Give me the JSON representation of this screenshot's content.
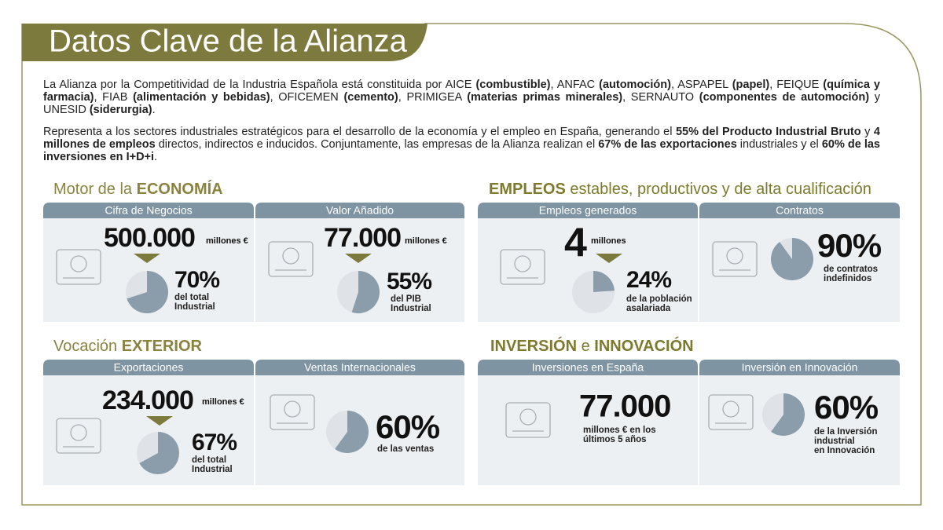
{
  "header": {
    "title": "Datos Clave de la Alianza"
  },
  "intro": [
    [
      {
        "text": "La Alianza por la Competitividad de la Industria Española está constituida por AICE ",
        "bold": false
      },
      {
        "text": "(combustible)",
        "bold": true
      },
      {
        "text": ", ANFAC ",
        "bold": false
      },
      {
        "text": "(automoción)",
        "bold": true
      },
      {
        "text": ", ASPAPEL ",
        "bold": false
      },
      {
        "text": "(papel)",
        "bold": true
      },
      {
        "text": ", FEIQUE ",
        "bold": false
      },
      {
        "text": "(química y farmacia)",
        "bold": true
      },
      {
        "text": ", FIAB ",
        "bold": false
      },
      {
        "text": "(alimentación y bebidas)",
        "bold": true
      },
      {
        "text": ", OFICEMEN ",
        "bold": false
      },
      {
        "text": "(cemento)",
        "bold": true
      },
      {
        "text": ", PRIMIGEA ",
        "bold": false
      },
      {
        "text": "(materias primas minerales)",
        "bold": true
      },
      {
        "text": ", SERNAUTO ",
        "bold": false
      },
      {
        "text": "(componentes de automoción)",
        "bold": true
      },
      {
        "text": " y UNESID ",
        "bold": false
      },
      {
        "text": "(siderurgia)",
        "bold": true
      },
      {
        "text": ".",
        "bold": false
      }
    ],
    [
      {
        "text": "Representa a los sectores industriales estratégicos para el desarrollo de la economía y el empleo en España, generando el ",
        "bold": false
      },
      {
        "text": "55% del Producto Industrial Bruto",
        "bold": true
      },
      {
        "text": " y ",
        "bold": false
      },
      {
        "text": "4 millones de empleos",
        "bold": true
      },
      {
        "text": " directos, indirectos e inducidos. Conjuntamente, las empresas de la Alianza realizan el ",
        "bold": false
      },
      {
        "text": "67% de las exportaciones",
        "bold": true
      },
      {
        "text": " industriales y el ",
        "bold": false
      },
      {
        "text": "60% de las inversiones en I+D+i",
        "bold": true
      },
      {
        "text": ".",
        "bold": false
      }
    ]
  ],
  "sections": [
    {
      "heading": [
        {
          "text": "Motor de la ",
          "bold": false
        },
        {
          "text": "ECONOMÍA",
          "bold": true
        }
      ],
      "cards": [
        {
          "header": "Cifra de Negocios",
          "big": "500.000",
          "unit": "millones €",
          "pct": 70,
          "pct_label": "70%",
          "desc": [
            "del total",
            "Industrial"
          ]
        },
        {
          "header": "Valor Añadido",
          "big": "77.000",
          "unit": "millones €",
          "pct": 55,
          "pct_label": "55%",
          "desc": [
            "del PIB",
            "Industrial"
          ]
        }
      ]
    },
    {
      "heading": [
        {
          "text": "EMPLEOS",
          "bold": true
        },
        {
          "text": " estables, productivos y de alta cualificación",
          "bold": false
        }
      ],
      "cards": [
        {
          "header": "Empleos generados",
          "big": "4",
          "unit": "millones",
          "pct": 24,
          "pct_label": "24%",
          "desc": [
            "de la población",
            "asalariada"
          ]
        },
        {
          "header": "Contratos",
          "pct": 90,
          "pct_label": "90%",
          "desc": [
            "de contratos",
            "indefinidos"
          ]
        }
      ]
    },
    {
      "heading": [
        {
          "text": "Vocación ",
          "bold": false
        },
        {
          "text": "EXTERIOR",
          "bold": true
        }
      ],
      "cards": [
        {
          "header": "Exportaciones",
          "big": "234.000",
          "unit": "millones €",
          "pct": 67,
          "pct_label": "67%",
          "desc": [
            "del total",
            "Industrial"
          ]
        },
        {
          "header": "Ventas Internacionales",
          "pct": 60,
          "pct_label": "60%",
          "desc": [
            "de las ventas"
          ]
        }
      ]
    },
    {
      "heading": [
        {
          "text": "INVERSIÓN",
          "bold": true
        },
        {
          "text": " e ",
          "bold": false
        },
        {
          "text": "INNOVACIÓN",
          "bold": true
        }
      ],
      "cards": [
        {
          "header": "Inversiones en España",
          "big": "77.000",
          "desc": [
            "millones € en los",
            "últimos 5 años"
          ]
        },
        {
          "header": "Inversión en Innovación",
          "pct": 60,
          "pct_label": "60%",
          "desc": [
            "de la Inversión",
            "industrial",
            "en Innovación"
          ]
        }
      ]
    }
  ]
}
